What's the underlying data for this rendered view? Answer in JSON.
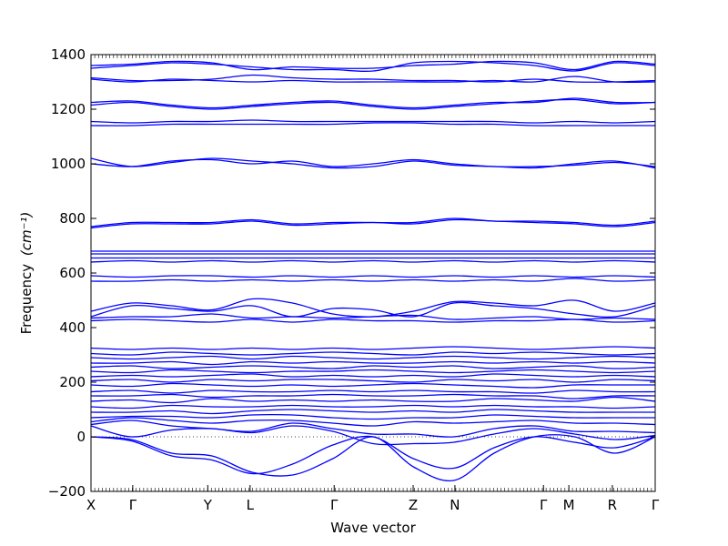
{
  "chart_data": {
    "type": "line",
    "title": "",
    "xlabel": "Wave vector",
    "ylabel": "Frequency",
    "ylabel_unit": "(cm⁻¹)",
    "ylim": [
      -200,
      1400
    ],
    "yticks": [
      -200,
      0,
      200,
      400,
      600,
      800,
      1000,
      1200,
      1400
    ],
    "ytick_labels": [
      "−200",
      "0",
      "200",
      "400",
      "600",
      "800",
      "1000",
      "1200",
      "1400"
    ],
    "xlim": [
      0,
      1
    ],
    "high_symmetry_points": [
      {
        "label": "X",
        "x": 0.0
      },
      {
        "label": "Γ",
        "x": 0.074
      },
      {
        "label": "Y",
        "x": 0.207
      },
      {
        "label": "L",
        "x": 0.282
      },
      {
        "label": "Γ",
        "x": 0.431
      },
      {
        "label": "Z",
        "x": 0.571
      },
      {
        "label": "N",
        "x": 0.645
      },
      {
        "label": "Γ",
        "x": 0.802
      },
      {
        "label": "M",
        "x": 0.847
      },
      {
        "label": "R",
        "x": 0.924
      },
      {
        "label": "Γ",
        "x": 1.0
      }
    ],
    "zero_line": true,
    "line_color": "#0000ff",
    "series": [
      {
        "values": [
          0,
          -10,
          -60,
          -70,
          -130,
          -140,
          -80,
          0,
          -110,
          -160,
          -60,
          0,
          0,
          -60,
          0
        ]
      },
      {
        "values": [
          0,
          -15,
          -70,
          -85,
          -135,
          -100,
          -30,
          0,
          -80,
          -115,
          -40,
          0,
          -20,
          -40,
          0
        ]
      },
      {
        "values": [
          40,
          0,
          25,
          30,
          15,
          40,
          20,
          -25,
          -25,
          -20,
          10,
          30,
          10,
          -10,
          5
        ]
      },
      {
        "values": [
          45,
          60,
          40,
          30,
          20,
          50,
          30,
          10,
          10,
          0,
          30,
          40,
          20,
          20,
          15
        ]
      },
      {
        "values": [
          55,
          70,
          60,
          50,
          60,
          60,
          50,
          40,
          55,
          50,
          55,
          60,
          50,
          50,
          45
        ]
      },
      {
        "values": [
          70,
          75,
          75,
          70,
          80,
          80,
          70,
          65,
          70,
          70,
          80,
          75,
          70,
          70,
          70
        ]
      },
      {
        "values": [
          90,
          90,
          95,
          85,
          95,
          100,
          95,
          90,
          95,
          90,
          100,
          95,
          90,
          90,
          90
        ]
      },
      {
        "values": [
          110,
          105,
          115,
          110,
          110,
          115,
          110,
          110,
          115,
          110,
          115,
          110,
          110,
          105,
          110
        ]
      },
      {
        "values": [
          130,
          135,
          125,
          140,
          130,
          135,
          130,
          135,
          130,
          130,
          140,
          135,
          130,
          145,
          130
        ]
      },
      {
        "values": [
          150,
          150,
          155,
          145,
          150,
          150,
          155,
          150,
          150,
          155,
          150,
          150,
          140,
          150,
          150
        ]
      },
      {
        "values": [
          165,
          170,
          160,
          170,
          165,
          165,
          170,
          165,
          170,
          165,
          165,
          160,
          170,
          165,
          165
        ]
      },
      {
        "values": [
          190,
          185,
          195,
          190,
          185,
          190,
          185,
          190,
          195,
          190,
          185,
          180,
          190,
          190,
          190
        ]
      },
      {
        "values": [
          205,
          210,
          200,
          210,
          205,
          210,
          210,
          205,
          200,
          210,
          205,
          210,
          200,
          210,
          205
        ]
      },
      {
        "values": [
          220,
          225,
          220,
          225,
          230,
          220,
          225,
          220,
          225,
          220,
          230,
          225,
          220,
          225,
          220
        ]
      },
      {
        "values": [
          240,
          235,
          245,
          240,
          235,
          240,
          240,
          245,
          240,
          235,
          240,
          245,
          240,
          235,
          240
        ]
      },
      {
        "values": [
          255,
          260,
          250,
          255,
          260,
          255,
          250,
          260,
          255,
          260,
          250,
          255,
          260,
          250,
          255
        ]
      },
      {
        "values": [
          270,
          270,
          275,
          265,
          275,
          270,
          275,
          270,
          270,
          275,
          270,
          275,
          270,
          275,
          270
        ]
      },
      {
        "values": [
          290,
          285,
          290,
          295,
          285,
          295,
          290,
          285,
          290,
          295,
          290,
          285,
          290,
          295,
          290
        ]
      },
      {
        "values": [
          305,
          300,
          310,
          305,
          300,
          305,
          310,
          305,
          300,
          310,
          305,
          310,
          305,
          300,
          305
        ]
      },
      {
        "values": [
          325,
          320,
          325,
          320,
          325,
          320,
          325,
          320,
          325,
          330,
          325,
          320,
          325,
          330,
          325
        ]
      },
      {
        "values": [
          425,
          430,
          425,
          420,
          430,
          420,
          430,
          425,
          425,
          420,
          425,
          425,
          430,
          420,
          425
        ]
      },
      {
        "values": [
          435,
          440,
          440,
          450,
          435,
          440,
          435,
          440,
          445,
          430,
          435,
          440,
          430,
          435,
          430
        ]
      },
      {
        "values": [
          440,
          480,
          470,
          460,
          480,
          440,
          470,
          465,
          440,
          490,
          480,
          470,
          450,
          440,
          480
        ]
      },
      {
        "values": [
          460,
          490,
          480,
          465,
          505,
          490,
          450,
          440,
          460,
          495,
          490,
          480,
          500,
          460,
          490
        ]
      },
      {
        "values": [
          570,
          570,
          575,
          570,
          575,
          570,
          575,
          570,
          575,
          570,
          575,
          570,
          580,
          570,
          575
        ]
      },
      {
        "values": [
          590,
          585,
          590,
          590,
          585,
          590,
          585,
          590,
          585,
          590,
          585,
          590,
          585,
          590,
          585
        ]
      },
      {
        "values": [
          640,
          645,
          640,
          645,
          640,
          645,
          640,
          645,
          640,
          645,
          640,
          645,
          640,
          645,
          640
        ]
      },
      {
        "values": [
          655,
          655,
          655,
          655,
          655,
          655,
          655,
          655,
          655,
          655,
          655,
          655,
          655,
          655,
          655
        ]
      },
      {
        "values": [
          670,
          670,
          670,
          670,
          670,
          670,
          670,
          670,
          670,
          670,
          670,
          670,
          670,
          670,
          670
        ]
      },
      {
        "values": [
          680,
          680,
          680,
          680,
          680,
          680,
          680,
          680,
          680,
          680,
          680,
          680,
          680,
          680,
          680
        ]
      },
      {
        "values": [
          765,
          780,
          780,
          780,
          790,
          775,
          780,
          785,
          780,
          795,
          790,
          785,
          780,
          770,
          785
        ]
      },
      {
        "values": [
          770,
          785,
          785,
          785,
          795,
          780,
          785,
          785,
          785,
          800,
          790,
          790,
          785,
          775,
          790
        ]
      },
      {
        "values": [
          1000,
          990,
          1010,
          1015,
          1000,
          1010,
          990,
          1000,
          1015,
          1000,
          990,
          990,
          995,
          1005,
          990
        ]
      },
      {
        "values": [
          1020,
          990,
          1005,
          1020,
          1010,
          1000,
          985,
          990,
          1010,
          995,
          990,
          985,
          1000,
          1010,
          985
        ]
      },
      {
        "values": [
          1140,
          1140,
          1145,
          1145,
          1145,
          1145,
          1145,
          1150,
          1150,
          1145,
          1145,
          1140,
          1140,
          1140,
          1140
        ]
      },
      {
        "values": [
          1155,
          1150,
          1155,
          1155,
          1160,
          1155,
          1155,
          1155,
          1155,
          1155,
          1155,
          1150,
          1155,
          1150,
          1155
        ]
      },
      {
        "values": [
          1215,
          1225,
          1210,
          1200,
          1210,
          1220,
          1225,
          1210,
          1200,
          1210,
          1220,
          1230,
          1235,
          1220,
          1225
        ]
      },
      {
        "values": [
          1225,
          1230,
          1215,
          1205,
          1215,
          1225,
          1230,
          1215,
          1205,
          1215,
          1225,
          1225,
          1240,
          1225,
          1225
        ]
      },
      {
        "values": [
          1310,
          1300,
          1310,
          1305,
          1300,
          1305,
          1300,
          1300,
          1300,
          1300,
          1305,
          1300,
          1320,
          1300,
          1300
        ]
      },
      {
        "values": [
          1315,
          1305,
          1305,
          1310,
          1325,
          1315,
          1310,
          1310,
          1305,
          1305,
          1300,
          1310,
          1300,
          1300,
          1305
        ]
      },
      {
        "values": [
          1350,
          1360,
          1370,
          1365,
          1355,
          1345,
          1345,
          1340,
          1370,
          1375,
          1370,
          1360,
          1340,
          1370,
          1360
        ]
      },
      {
        "values": [
          1360,
          1365,
          1375,
          1370,
          1345,
          1355,
          1350,
          1350,
          1360,
          1365,
          1375,
          1370,
          1345,
          1375,
          1365
        ]
      }
    ]
  }
}
